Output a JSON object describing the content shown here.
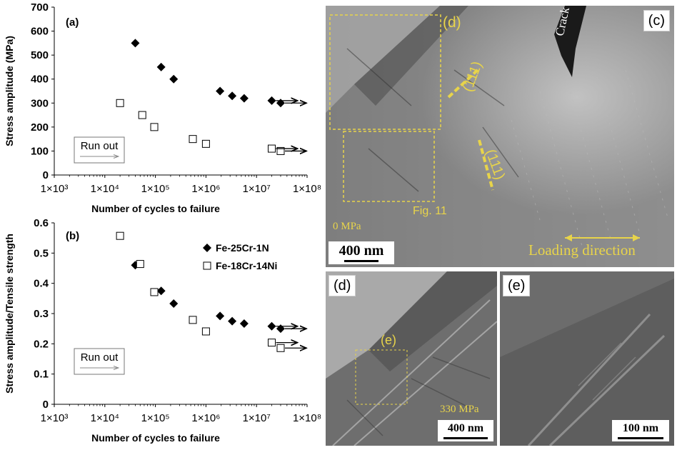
{
  "chart_data": [
    {
      "type": "scatter",
      "panel": "(a)",
      "xlabel": "Number of cycles to failure",
      "ylabel": "Stress amplitude (MPa)",
      "xscale": "log",
      "xlim": [
        1000,
        100000000
      ],
      "ylim": [
        0,
        700
      ],
      "xticks": [
        "1×10³",
        "1×10⁴",
        "1×10⁵",
        "1×10⁶",
        "1×10⁷",
        "1×10⁸"
      ],
      "yticks": [
        "0",
        "100",
        "200",
        "300",
        "400",
        "500",
        "600",
        "700"
      ],
      "series": [
        {
          "name": "Fe-25Cr-1N",
          "marker": "filled-diamond",
          "x": [
            40000,
            130000,
            230000,
            1900000,
            3300000,
            5700000,
            20000000,
            30000000
          ],
          "y": [
            550,
            450,
            400,
            350,
            330,
            320,
            310,
            300
          ]
        },
        {
          "name": "Fe-18Cr-14Ni",
          "marker": "open-square",
          "x": [
            20000,
            55000,
            95000,
            550000,
            1000000,
            20000000,
            30000000
          ],
          "y": [
            300,
            250,
            200,
            150,
            130,
            110,
            100
          ]
        }
      ],
      "runout_label": "Run out"
    },
    {
      "type": "scatter",
      "panel": "(b)",
      "xlabel": "Number of cycles to failure",
      "ylabel": "Stress amplitude/Tensile strength",
      "xscale": "log",
      "xlim": [
        1000,
        100000000
      ],
      "ylim": [
        0,
        0.6
      ],
      "xticks": [
        "1×10³",
        "1×10⁴",
        "1×10⁵",
        "1×10⁶",
        "1×10⁷",
        "1×10⁸"
      ],
      "yticks": [
        "0",
        "0.1",
        "0.2",
        "0.3",
        "0.4",
        "0.5",
        "0.6"
      ],
      "legend": [
        "Fe-25Cr-1N",
        "Fe-18Cr-14Ni"
      ],
      "series": [
        {
          "name": "Fe-25Cr-1N",
          "marker": "filled-diamond",
          "x": [
            40000,
            130000,
            230000,
            1900000,
            3300000,
            5700000,
            20000000,
            30000000
          ],
          "y": [
            0.46,
            0.375,
            0.333,
            0.292,
            0.275,
            0.267,
            0.258,
            0.25
          ]
        },
        {
          "name": "Fe-18Cr-14Ni",
          "marker": "open-square",
          "x": [
            20000,
            50000,
            95000,
            550000,
            1000000,
            20000000,
            30000000
          ],
          "y": [
            0.557,
            0.464,
            0.371,
            0.279,
            0.241,
            0.204,
            0.186
          ]
        }
      ],
      "runout_label": "Run out"
    }
  ],
  "micrographs": {
    "c": {
      "panel_label": "(c)",
      "crack_label": "Crack",
      "region_d_label": "(d)",
      "plane1": "(111)",
      "plane2": "(111)",
      "fig_ref": "Fig. 11",
      "stress": "0 MPa",
      "scale": "400 nm",
      "loading": "Loading direction"
    },
    "d": {
      "panel_label": "(d)",
      "region_e_label": "(e)",
      "stress": "330 MPa",
      "scale": "400 nm"
    },
    "e": {
      "panel_label": "(e)",
      "scale": "100 nm"
    }
  }
}
